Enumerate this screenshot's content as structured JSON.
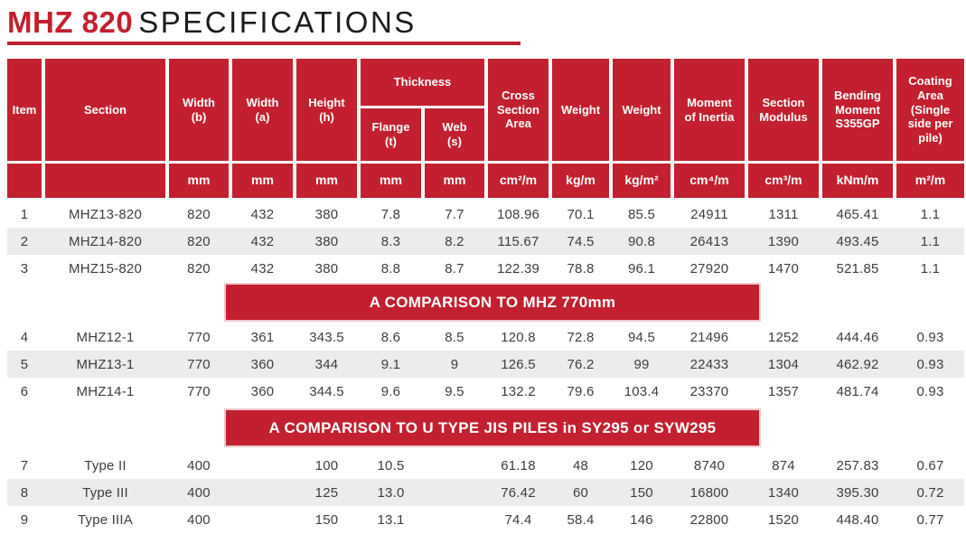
{
  "page": {
    "colors": {
      "accent": "#C2202F",
      "stripe": "#ECECEC",
      "banner_border": "#F0C8CC",
      "body_text": "#3D3D3D",
      "title_text": "#1B1B1B"
    },
    "title_red": "MHZ 820",
    "title_rest": "SPECIFICATIONS"
  },
  "table": {
    "header": {
      "item": "Item",
      "section": "Section",
      "width_b": "Width\n(b)",
      "width_a": "Width\n(a)",
      "height_h": "Height\n(h)",
      "thickness": "Thickness",
      "flange_t": "Flange\n(t)",
      "web_s": "Web\n(s)",
      "cross_section_area": "Cross\nSection\nArea",
      "weight_kg_m": "Weight",
      "weight_kg_m2": "Weight",
      "moment_of_inertia": "Moment\nof Inertia",
      "section_modulus": "Section\nModulus",
      "bending_moment": "Bending\nMoment\nS355GP",
      "coating_area": "Coating\nArea\n(Single\nside per\npile)"
    },
    "units": [
      "",
      "",
      "mm",
      "mm",
      "mm",
      "mm",
      "mm",
      "cm²/m",
      "kg/m",
      "kg/m²",
      "cm⁴/m",
      "cm³/m",
      "kNm/m",
      "m²/m"
    ],
    "banners": [
      "A COMPARISON TO MHZ 770mm",
      "A COMPARISON TO U TYPE JIS PILES in SY295 or SYW295"
    ],
    "rows": [
      {
        "cells": [
          "1",
          "MHZ13-820",
          "820",
          "432",
          "380",
          "7.8",
          "7.7",
          "108.96",
          "70.1",
          "85.5",
          "24911",
          "1311",
          "465.41",
          "1.1"
        ]
      },
      {
        "cells": [
          "2",
          "MHZ14-820",
          "820",
          "432",
          "380",
          "8.3",
          "8.2",
          "115.67",
          "74.5",
          "90.8",
          "26413",
          "1390",
          "493.45",
          "1.1"
        ]
      },
      {
        "cells": [
          "3",
          "MHZ15-820",
          "820",
          "432",
          "380",
          "8.8",
          "8.7",
          "122.39",
          "78.8",
          "96.1",
          "27920",
          "1470",
          "521.85",
          "1.1"
        ]
      },
      {
        "cells": [
          "4",
          "MHZ12-1",
          "770",
          "361",
          "343.5",
          "8.6",
          "8.5",
          "120.8",
          "72.8",
          "94.5",
          "21496",
          "1252",
          "444.46",
          "0.93"
        ]
      },
      {
        "cells": [
          "5",
          "MHZ13-1",
          "770",
          "360",
          "344",
          "9.1",
          "9",
          "126.5",
          "76.2",
          "99",
          "22433",
          "1304",
          "462.92",
          "0.93"
        ]
      },
      {
        "cells": [
          "6",
          "MHZ14-1",
          "770",
          "360",
          "344.5",
          "9.6",
          "9.5",
          "132.2",
          "79.6",
          "103.4",
          "23370",
          "1357",
          "481.74",
          "0.93"
        ]
      },
      {
        "cells": [
          "7",
          "Type II",
          "400",
          "",
          "100",
          "10.5",
          "",
          "61.18",
          "48",
          "120",
          "8740",
          "874",
          "257.83",
          "0.67"
        ]
      },
      {
        "cells": [
          "8",
          "Type III",
          "400",
          "",
          "125",
          "13.0",
          "",
          "76.42",
          "60",
          "150",
          "16800",
          "1340",
          "395.30",
          "0.72"
        ]
      },
      {
        "cells": [
          "9",
          "Type IIIA",
          "400",
          "",
          "150",
          "13.1",
          "",
          "74.4",
          "58.4",
          "146",
          "22800",
          "1520",
          "448.40",
          "0.77"
        ]
      }
    ]
  }
}
